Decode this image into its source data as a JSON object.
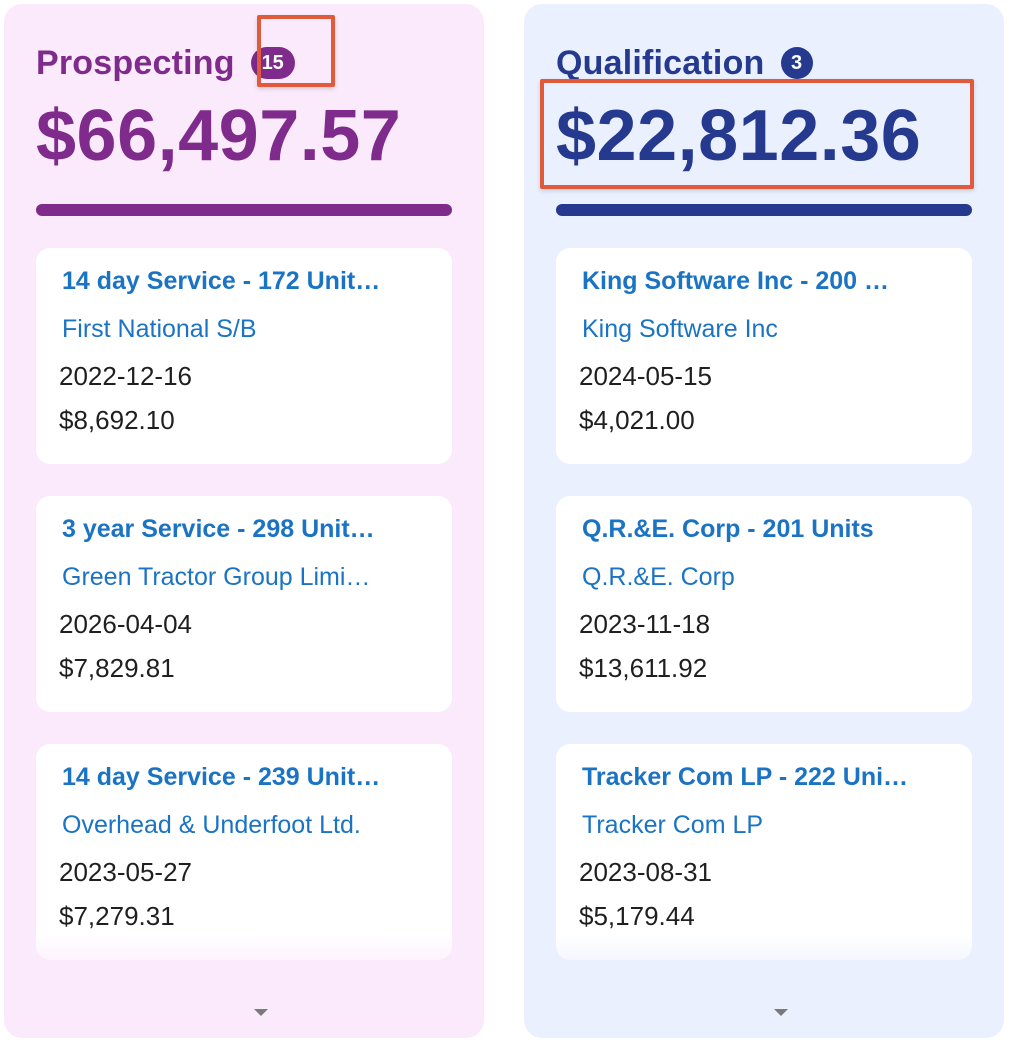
{
  "columns": [
    {
      "title": "Prospecting",
      "count": "15",
      "total": "$66,497.57",
      "accent_color": "#7f2b8c",
      "background_color": "#fbeafb",
      "cards": [
        {
          "title": "14 day Service - 172 Unit…",
          "account": "First National S/B",
          "date": "2022-12-16",
          "amount": "$8,692.10"
        },
        {
          "title": "3 year Service - 298 Unit…",
          "account": "Green Tractor Group Limi…",
          "date": "2026-04-04",
          "amount": "$7,829.81"
        },
        {
          "title": "14 day Service - 239 Unit…",
          "account": "Overhead & Underfoot Ltd.",
          "date": "2023-05-27",
          "amount": "$7,279.31"
        }
      ],
      "expand_icon": "chevron-down-icon"
    },
    {
      "title": "Qualification",
      "count": "3",
      "total": "$22,812.36",
      "accent_color": "#253a8e",
      "background_color": "#eaf0fd",
      "cards": [
        {
          "title": "King Software Inc - 200 …",
          "account": "King Software Inc",
          "date": "2024-05-15",
          "amount": "$4,021.00"
        },
        {
          "title": "Q.R.&E. Corp - 201 Units",
          "account": "Q.R.&E. Corp",
          "date": "2023-11-18",
          "amount": "$13,611.92"
        },
        {
          "title": "Tracker Com LP - 222 Uni…",
          "account": "Tracker Com LP",
          "date": "2023-08-31",
          "amount": "$5,179.44"
        }
      ],
      "expand_icon": "chevron-down-icon"
    }
  ],
  "highlight_color": "#e25a3c",
  "link_color": "#1b73c4"
}
